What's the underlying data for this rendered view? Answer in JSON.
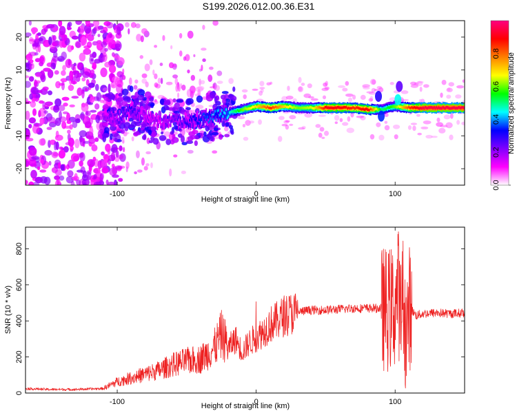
{
  "title": "S199.2026.012.00.36.E31",
  "chart_data": [
    {
      "type": "heatmap",
      "title": "S199.2026.012.00.36.E31",
      "xlabel": "Height of straight line (km)",
      "ylabel": "Frequency (Hz)",
      "xlim": [
        -166,
        150
      ],
      "ylim": [
        -25,
        25
      ],
      "x_ticks": [
        -100,
        0,
        100
      ],
      "x_tick_labels": [
        "-100",
        "0",
        "100"
      ],
      "y_ticks": [
        -20,
        -10,
        0,
        10,
        20
      ],
      "y_tick_labels": [
        "-20",
        "-10",
        "0",
        "10",
        "20"
      ],
      "colorbar": {
        "label": "Normalized spectral amplitude",
        "range": [
          0,
          1
        ],
        "ticks": [
          0.0,
          0.2,
          0.4,
          0.6,
          0.8
        ],
        "tick_labels": [
          "0.0",
          "0.2",
          "0.4",
          "0.6",
          "0.8"
        ],
        "colors": [
          "#ffffff",
          "#ff00ff",
          "#8000ff",
          "#0000ff",
          "#00ffff",
          "#00ff00",
          "#ffff00",
          "#ff8000",
          "#ff0000",
          "#ff0080"
        ]
      },
      "ridge": {
        "x": [
          -110,
          -100,
          -90,
          -80,
          -70,
          -60,
          -50,
          -40,
          -30,
          -20,
          -10,
          0,
          10,
          20,
          30,
          40,
          50,
          60,
          70,
          80,
          90,
          100,
          110,
          120,
          130,
          140,
          150
        ],
        "freq": [
          -4,
          -5,
          -2,
          -4,
          -6,
          -5,
          -6,
          -5,
          -4,
          -3,
          -2,
          -1,
          -1.5,
          -1,
          -1.5,
          -1.5,
          -1.5,
          -1.5,
          -1.5,
          -2,
          -2,
          -1,
          -1.5,
          -1.5,
          -1.5,
          -1.5,
          -1.5
        ],
        "amplitude": [
          0.2,
          0.25,
          0.3,
          0.2,
          0.2,
          0.25,
          0.3,
          0.35,
          0.4,
          0.45,
          0.6,
          0.7,
          0.85,
          0.7,
          0.6,
          0.65,
          0.9,
          0.9,
          0.85,
          0.9,
          0.5,
          0.6,
          0.85,
          0.95,
          0.95,
          0.95,
          0.95
        ]
      }
    },
    {
      "type": "line",
      "xlabel": "Height of straight line (km)",
      "ylabel": "SNR (10 * v/v)",
      "xlim": [
        -166,
        150
      ],
      "ylim": [
        0,
        920
      ],
      "x_ticks": [
        -100,
        0,
        100
      ],
      "x_tick_labels": [
        "-100",
        "0",
        "100"
      ],
      "y_ticks": [
        0,
        200,
        400,
        600,
        800
      ],
      "y_tick_labels": [
        "0",
        "200",
        "400",
        "600",
        "800"
      ],
      "line_color": "#ee2222",
      "series": [
        {
          "name": "SNR",
          "x": [
            -166,
            -150,
            -130,
            -110,
            -100,
            -90,
            -80,
            -70,
            -60,
            -50,
            -40,
            -30,
            -25,
            -20,
            -15,
            -10,
            -5,
            0,
            5,
            10,
            15,
            20,
            30,
            40,
            50,
            60,
            70,
            80,
            90,
            95,
            100,
            102,
            104,
            106,
            108,
            110,
            115,
            120,
            130,
            140,
            150
          ],
          "y": [
            25,
            20,
            20,
            25,
            60,
            80,
            100,
            120,
            150,
            170,
            180,
            240,
            310,
            250,
            300,
            230,
            280,
            310,
            340,
            380,
            400,
            430,
            450,
            460,
            460,
            465,
            470,
            470,
            470,
            460,
            480,
            600,
            420,
            550,
            300,
            480,
            430,
            440,
            445,
            440,
            445
          ]
        }
      ]
    }
  ]
}
